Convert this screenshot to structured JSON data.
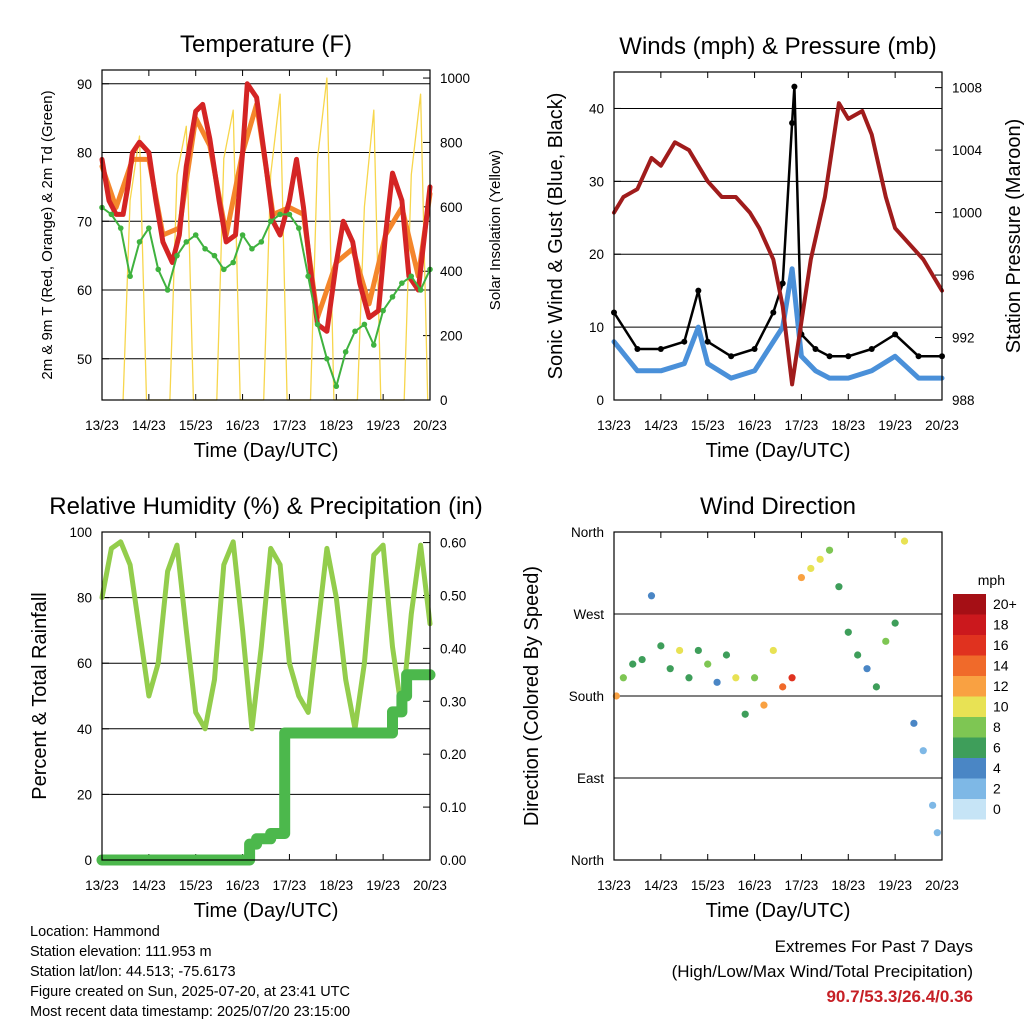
{
  "panels": {
    "temperature": {
      "title": "Temperature (F)",
      "ylabel_left": "2m & 9m T (Red, Orange) & 2m Td (Green)",
      "ylabel_right": "Solar Insolation (Yellow)",
      "xlabel": "Time (Day/UTC)",
      "left_ticks": [
        "50",
        "60",
        "70",
        "80",
        "90"
      ],
      "right_ticks": [
        "0",
        "200",
        "400",
        "600",
        "800",
        "1000"
      ]
    },
    "winds": {
      "title": "Winds (mph) & Pressure (mb)",
      "ylabel_left": "Sonic Wind & Gust (Blue, Black)",
      "ylabel_right": "Station Pressure (Maroon)",
      "xlabel": "Time (Day/UTC)",
      "left_ticks": [
        "0",
        "10",
        "20",
        "30",
        "40"
      ],
      "right_ticks": [
        "988",
        "992",
        "996",
        "1000",
        "1004",
        "1008"
      ]
    },
    "humidity": {
      "title": "Relative Humidity (%) & Precipitation (in)",
      "ylabel_left": "Percent & Total Rainfall",
      "xlabel": "Time (Day/UTC)",
      "left_ticks": [
        "0",
        "20",
        "40",
        "60",
        "80",
        "100"
      ],
      "right_ticks": [
        "0.00",
        "0.10",
        "0.20",
        "0.30",
        "0.40",
        "0.50",
        "0.60"
      ]
    },
    "wind_direction": {
      "title": "Wind Direction",
      "ylabel_left": "Direction (Colored By Speed)",
      "xlabel": "Time (Day/UTC)",
      "left_ticks": [
        "North",
        "East",
        "South",
        "West",
        "North"
      ],
      "colorbar_title": "mph",
      "colorbar_labels": [
        "20+",
        "18",
        "16",
        "14",
        "12",
        "10",
        "8",
        "6",
        "4",
        "2",
        "0"
      ],
      "colorbar_colors": [
        "#a50f15",
        "#cb181d",
        "#e0321f",
        "#f06a2a",
        "#f9a142",
        "#e8e254",
        "#7ec653",
        "#3e9e5a",
        "#4a86c5",
        "#7eb8e6",
        "#c6e4f6"
      ]
    }
  },
  "x_ticks": [
    "13/23",
    "14/23",
    "15/23",
    "16/23",
    "17/23",
    "18/23",
    "19/23",
    "20/23"
  ],
  "station_info": {
    "location": "Location: Hammond",
    "elevation": "Station elevation: 111.953 m",
    "latlon": "Station lat/lon: 44.513; -75.6173",
    "created": "Figure created on Sun, 2025-07-20, at 23:41 UTC",
    "latest": "Most recent data timestamp: 2025/07/20 23:15:00"
  },
  "extremes": {
    "title": "Extremes For Past 7 Days",
    "subtitle": "(High/Low/Max Wind/Total Precipitation)",
    "values": "90.7/53.3/26.4/0.36"
  },
  "chart_data": [
    {
      "type": "line",
      "title": "Temperature (F)",
      "xlabel": "Time (Day/UTC)",
      "ylabel": "2m & 9m T (Red, Orange) & 2m Td (Green)",
      "y2label": "Solar Insolation (Yellow)",
      "x_unit": "days since 13/23 UTC",
      "ylim": [
        44,
        92
      ],
      "y2lim": [
        0,
        1025
      ],
      "series": [
        {
          "name": "2m T",
          "color": "#d42424",
          "x": [
            0,
            0.15,
            0.3,
            0.45,
            0.55,
            0.65,
            0.8,
            1.0,
            1.15,
            1.3,
            1.5,
            1.65,
            1.8,
            2.0,
            2.15,
            2.3,
            2.5,
            2.65,
            2.85,
            3.0,
            3.1,
            3.3,
            3.5,
            3.65,
            3.8,
            4.0,
            4.15,
            4.3,
            4.45,
            4.6,
            4.8,
            5.0,
            5.15,
            5.35,
            5.5,
            5.7,
            5.9,
            6.05,
            6.2,
            6.4,
            6.55,
            6.75,
            7.0
          ],
          "y": [
            79,
            73,
            71,
            71,
            75,
            80,
            81.5,
            80,
            73,
            67,
            64,
            68,
            78,
            86,
            87,
            82,
            73,
            67,
            68,
            80,
            90,
            88,
            78,
            70,
            68,
            73,
            79,
            72,
            63,
            55,
            54,
            64,
            70,
            67,
            61,
            56,
            57,
            68,
            77,
            73,
            62,
            60,
            75
          ]
        },
        {
          "name": "9m T",
          "color": "#f4862b",
          "x": [
            0,
            0.3,
            0.65,
            1.0,
            1.3,
            1.65,
            2.0,
            2.3,
            2.65,
            3.0,
            3.3,
            3.65,
            4.0,
            4.3,
            4.6,
            5.0,
            5.35,
            5.7,
            6.05,
            6.4,
            6.75,
            7.0
          ],
          "y": [
            78,
            72,
            79,
            79,
            68,
            69,
            85,
            81,
            68,
            80,
            87,
            71,
            72,
            71,
            56,
            64,
            66,
            58,
            68,
            72,
            62,
            74
          ]
        },
        {
          "name": "2m Td",
          "color": "#3fb23f",
          "x": [
            0,
            0.2,
            0.4,
            0.6,
            0.8,
            1.0,
            1.2,
            1.4,
            1.6,
            1.8,
            2.0,
            2.2,
            2.4,
            2.6,
            2.8,
            3.0,
            3.2,
            3.4,
            3.6,
            3.8,
            4.0,
            4.2,
            4.4,
            4.6,
            4.8,
            5.0,
            5.2,
            5.4,
            5.6,
            5.8,
            6.0,
            6.2,
            6.4,
            6.6,
            6.8,
            7.0
          ],
          "y": [
            72,
            71,
            69,
            62,
            67,
            69,
            63,
            60,
            65,
            67,
            68,
            66,
            65,
            63,
            64,
            68,
            66,
            67,
            70,
            71,
            71,
            69,
            62,
            55,
            50,
            46,
            51,
            54,
            55,
            52,
            57,
            59,
            61,
            62,
            60,
            63
          ]
        },
        {
          "name": "Solar Insolation",
          "axis": "right",
          "color": "#f7d64c",
          "x": [
            0.45,
            0.6,
            0.8,
            0.95,
            1.45,
            1.6,
            1.8,
            1.95,
            2.45,
            2.6,
            2.8,
            2.95,
            3.45,
            3.6,
            3.8,
            3.95,
            4.45,
            4.6,
            4.8,
            4.95,
            5.45,
            5.6,
            5.8,
            5.95,
            6.45,
            6.6,
            6.8,
            6.95
          ],
          "y": [
            0,
            620,
            820,
            0,
            0,
            700,
            850,
            0,
            0,
            750,
            900,
            0,
            0,
            700,
            950,
            0,
            0,
            750,
            1000,
            0,
            0,
            600,
            900,
            0,
            0,
            700,
            950,
            0
          ]
        }
      ]
    },
    {
      "type": "line",
      "title": "Winds (mph) & Pressure (mb)",
      "xlabel": "Time (Day/UTC)",
      "ylabel": "Sonic Wind & Gust (Blue, Black)",
      "y2label": "Station Pressure (Maroon)",
      "x_unit": "days since 13/23 UTC",
      "ylim": [
        0,
        45
      ],
      "y2lim": [
        988,
        1009
      ],
      "series": [
        {
          "name": "Sonic Wind",
          "color": "#4a90d9",
          "x": [
            0,
            0.5,
            1.0,
            1.5,
            1.8,
            2.0,
            2.5,
            3.0,
            3.4,
            3.6,
            3.8,
            4.0,
            4.3,
            4.6,
            5.0,
            5.5,
            6.0,
            6.5,
            7.0
          ],
          "y": [
            8,
            4,
            4,
            5,
            10,
            5,
            3,
            4,
            8,
            10,
            18,
            6,
            4,
            3,
            3,
            4,
            6,
            3,
            3
          ]
        },
        {
          "name": "Gust",
          "color": "#000000",
          "x": [
            0,
            0.5,
            1.0,
            1.5,
            1.8,
            2.0,
            2.5,
            3.0,
            3.4,
            3.6,
            3.8,
            3.85,
            4.0,
            4.3,
            4.6,
            5.0,
            5.5,
            6.0,
            6.5,
            7.0
          ],
          "y": [
            12,
            7,
            7,
            8,
            15,
            8,
            6,
            7,
            12,
            16,
            38,
            43,
            9,
            7,
            6,
            6,
            7,
            9,
            6,
            6
          ]
        },
        {
          "name": "Station Pressure",
          "axis": "right",
          "color": "#a01c1c",
          "x": [
            0,
            0.2,
            0.5,
            0.8,
            1.0,
            1.3,
            1.6,
            1.8,
            2.0,
            2.3,
            2.6,
            2.9,
            3.1,
            3.4,
            3.6,
            3.8,
            4.0,
            4.2,
            4.5,
            4.8,
            5.0,
            5.3,
            5.5,
            5.8,
            6.0,
            6.3,
            6.6,
            6.8,
            7.0
          ],
          "y": [
            1000,
            1001,
            1001.5,
            1003.5,
            1003,
            1004.5,
            1004,
            1003,
            1002,
            1001,
            1001,
            1000,
            999,
            997,
            994,
            989,
            993,
            997,
            1001,
            1007,
            1006,
            1006.5,
            1005,
            1001,
            999,
            998,
            997,
            996,
            995
          ]
        }
      ]
    },
    {
      "type": "line",
      "title": "Relative Humidity (%) & Precipitation (in)",
      "xlabel": "Time (Day/UTC)",
      "ylabel": "Percent & Total Rainfall",
      "x_unit": "days since 13/23 UTC",
      "ylim": [
        0,
        100
      ],
      "y2lim": [
        0,
        0.62
      ],
      "series": [
        {
          "name": "Relative Humidity",
          "color": "#93cd4c",
          "x": [
            0,
            0.2,
            0.4,
            0.6,
            0.8,
            1.0,
            1.2,
            1.4,
            1.6,
            1.8,
            2.0,
            2.2,
            2.4,
            2.6,
            2.8,
            3.0,
            3.2,
            3.4,
            3.6,
            3.8,
            4.0,
            4.2,
            4.4,
            4.6,
            4.8,
            5.0,
            5.2,
            5.4,
            5.6,
            5.8,
            6.0,
            6.2,
            6.4,
            6.6,
            6.8,
            7.0
          ],
          "y": [
            80,
            95,
            97,
            90,
            70,
            50,
            60,
            88,
            96,
            70,
            45,
            40,
            55,
            90,
            97,
            70,
            40,
            65,
            95,
            90,
            60,
            50,
            45,
            70,
            95,
            80,
            55,
            40,
            60,
            93,
            96,
            65,
            45,
            75,
            96,
            72
          ]
        },
        {
          "name": "Total Precipitation",
          "axis": "right",
          "color": "#4cb84c",
          "x": [
            0,
            1.0,
            2.0,
            3.0,
            3.15,
            3.3,
            3.6,
            3.85,
            3.9,
            4.0,
            5.0,
            5.7,
            6.0,
            6.2,
            6.4,
            6.5,
            7.0
          ],
          "y": [
            0,
            0,
            0,
            0,
            0.03,
            0.04,
            0.05,
            0.05,
            0.24,
            0.24,
            0.24,
            0.24,
            0.24,
            0.28,
            0.31,
            0.35,
            0.35
          ]
        }
      ]
    },
    {
      "type": "scatter",
      "title": "Wind Direction",
      "xlabel": "Time (Day/UTC)",
      "ylabel": "Direction (Colored By Speed)",
      "x_unit": "days since 13/23 UTC",
      "y_unit": "degrees (North=0, East=90, South=180, West=270, North=360)",
      "ylim": [
        0,
        360
      ],
      "colorbar": {
        "title": "mph",
        "range": [
          0,
          20
        ]
      },
      "series": [
        {
          "name": "Direction",
          "x": [
            0.05,
            0.2,
            0.4,
            0.6,
            0.8,
            1.0,
            1.2,
            1.4,
            1.6,
            1.8,
            2.0,
            2.2,
            2.4,
            2.6,
            2.8,
            3.0,
            3.2,
            3.4,
            3.6,
            3.8,
            4.0,
            4.2,
            4.4,
            4.6,
            4.8,
            5.0,
            5.2,
            5.4,
            5.6,
            5.8,
            6.0,
            6.2,
            6.4,
            6.6,
            6.8,
            6.9
          ],
          "y": [
            180,
            200,
            215,
            220,
            290,
            235,
            210,
            230,
            200,
            230,
            215,
            195,
            225,
            200,
            160,
            200,
            170,
            230,
            190,
            200,
            310,
            320,
            330,
            340,
            300,
            250,
            225,
            210,
            190,
            240,
            260,
            350,
            150,
            120,
            60,
            30
          ],
          "speed": [
            12,
            8,
            6,
            5,
            4,
            5,
            6,
            10,
            6,
            5,
            8,
            4,
            6,
            10,
            5,
            8,
            12,
            10,
            14,
            16,
            11,
            9,
            10,
            8,
            6,
            5,
            6,
            4,
            5,
            7,
            6,
            9,
            3,
            2,
            1,
            2
          ]
        }
      ]
    }
  ]
}
